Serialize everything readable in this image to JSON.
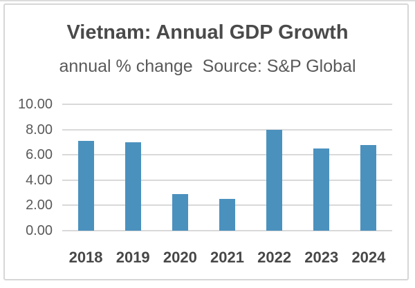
{
  "chart_data": {
    "type": "bar",
    "title": "Vietnam: Annual GDP Growth",
    "subtitle": "annual % change  Source: S&P Global",
    "categories": [
      "2018",
      "2019",
      "2020",
      "2021",
      "2022",
      "2023",
      "2024"
    ],
    "values": [
      7.1,
      7.0,
      2.9,
      2.5,
      8.0,
      6.5,
      6.8
    ],
    "xlabel": "",
    "ylabel": "",
    "ylim": [
      0,
      10
    ],
    "ytick_step": 2,
    "ytick_labels": [
      "0.00",
      "2.00",
      "4.00",
      "6.00",
      "8.00",
      "10.00"
    ],
    "grid": true,
    "legend": "none",
    "colors": {
      "bar": "#4b91be",
      "gridline": "#d9d9d9",
      "title": "#4a4a4a",
      "subtitle": "#595959",
      "y_tick": "#595959",
      "x_tick": "#474747",
      "frame_border": "#d6d6d6"
    }
  }
}
